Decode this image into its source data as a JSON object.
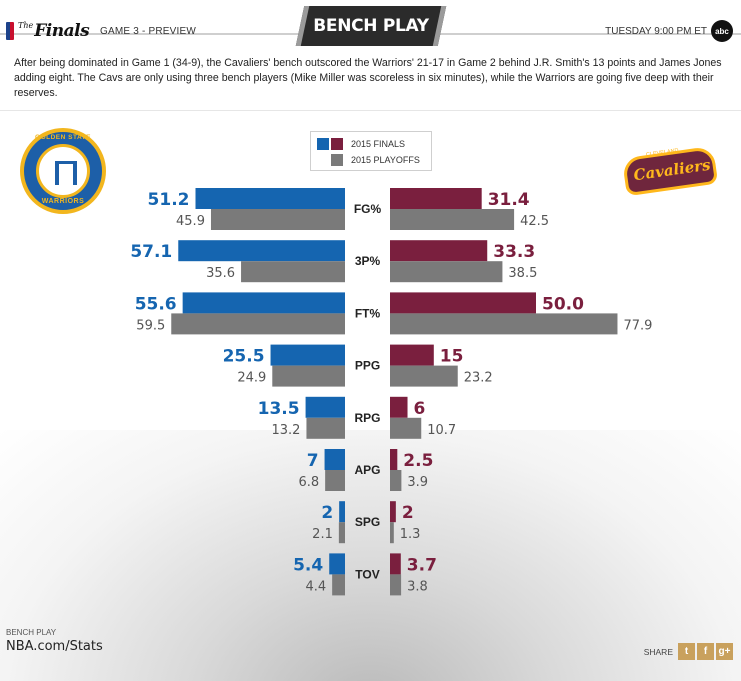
{
  "header": {
    "brand_the": "The",
    "brand_word": "Finals",
    "game_label": "GAME 3 - PREVIEW",
    "title": "BENCH PLAY",
    "airtime": "TUESDAY 9:00 PM ET",
    "network_logo": "abc"
  },
  "summary": "After being dominated in Game 1 (34-9), the Cavaliers' bench outscored the Warriors' 21-17 in Game 2 behind J.R. Smith's 13 points and James Jones adding eight. The Cavs are only using three bench players (Mike Miller was scoreless in six minutes), while the Warriors are going five deep with their reserves.",
  "teams": {
    "left": {
      "logo_top": "GOLDEN STATE",
      "logo_bottom": "WARRIORS"
    },
    "right": {
      "logo_top": "CLEVELAND",
      "logo_word": "Cavaliers"
    }
  },
  "legend": {
    "finals": "2015 FINALS",
    "playoffs": "2015 PLAYOFFS"
  },
  "colors": {
    "warriors_finals": "#1565b0",
    "cavs_finals": "#7a1f3e",
    "playoffs": "#7a7a7a",
    "warriors_text": "#1565b0",
    "cavs_text": "#7a1f3e",
    "playoffs_text": "#555555"
  },
  "chart_data": {
    "type": "bar",
    "orientation": "butterfly-horizontal",
    "categories": [
      "FG%",
      "3P%",
      "FT%",
      "PPG",
      "RPG",
      "APG",
      "SPG",
      "TOV"
    ],
    "series": [
      {
        "name": "Warriors 2015 FINALS",
        "side": "left",
        "values": [
          51.2,
          57.1,
          55.6,
          25.5,
          13.5,
          7,
          2,
          5.4
        ],
        "labels": [
          "51.2",
          "57.1",
          "55.6",
          "25.5",
          "13.5",
          "7",
          "2",
          "5.4"
        ]
      },
      {
        "name": "Warriors 2015 PLAYOFFS",
        "side": "left",
        "values": [
          45.9,
          35.6,
          59.5,
          24.9,
          13.2,
          6.8,
          2.1,
          4.4
        ],
        "labels": [
          "45.9",
          "35.6",
          "59.5",
          "24.9",
          "13.2",
          "6.8",
          "2.1",
          "4.4"
        ]
      },
      {
        "name": "Cavaliers 2015 FINALS",
        "side": "right",
        "values": [
          31.4,
          33.3,
          50.0,
          15,
          6,
          2.5,
          2,
          3.7
        ],
        "labels": [
          "31.4",
          "33.3",
          "50.0",
          "15",
          "6",
          "2.5",
          "2",
          "3.7"
        ]
      },
      {
        "name": "Cavaliers 2015 PLAYOFFS",
        "side": "right",
        "values": [
          42.5,
          38.5,
          77.9,
          23.2,
          10.7,
          3.9,
          1.3,
          3.8
        ],
        "labels": [
          "42.5",
          "38.5",
          "77.9",
          "23.2",
          "10.7",
          "3.9",
          "1.3",
          "3.8"
        ]
      }
    ],
    "xlim": [
      0,
      100
    ],
    "grid": false,
    "legend_position": "top-center"
  },
  "footer": {
    "label": "BENCH PLAY",
    "site": "NBA.com/Stats",
    "share_label": "SHARE",
    "share_buttons": [
      {
        "icon": "twitter-icon",
        "glyph": "t"
      },
      {
        "icon": "facebook-icon",
        "glyph": "f"
      },
      {
        "icon": "google-plus-icon",
        "glyph": "g+"
      }
    ]
  }
}
